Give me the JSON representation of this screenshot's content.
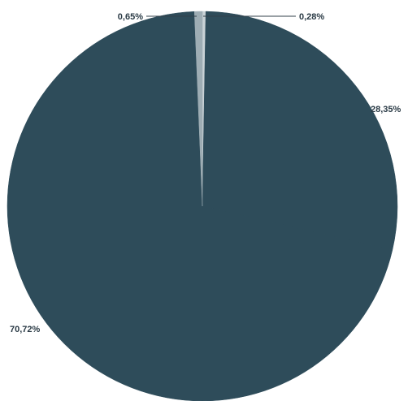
{
  "chart_data": {
    "type": "pie",
    "categories": [
      "0,28%",
      "28,35%",
      "70,72%",
      "0,65%"
    ],
    "values": [
      0.28,
      28.35,
      70.72,
      0.65
    ],
    "labels": [
      "0,28%",
      "28,35%",
      "70,72%",
      "0,65%"
    ],
    "colors": [
      "#c9d2d6",
      "#2e4c5a",
      "#2e4c5a",
      "#9eadb4"
    ],
    "start_angle": "top",
    "direction": "clockwise",
    "legend": "none"
  }
}
